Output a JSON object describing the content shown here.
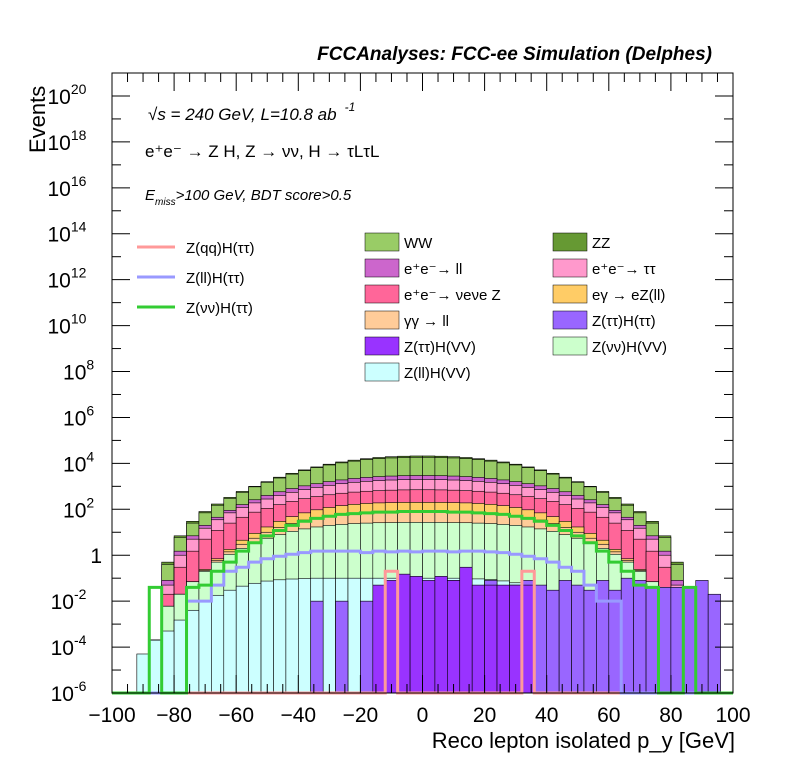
{
  "header": {
    "title": "FCCAnalyses: FCC-ee Simulation (Delphes)"
  },
  "annotations": {
    "energy_prefix": "√s = 240 GeV, L=10.8 ab",
    "energy_sup": "-1",
    "process": "e⁺e⁻ → Z H, Z → νν, H → τLτL",
    "cut_prefix": "E",
    "cut_sub": "miss",
    "cut_suffix": ">100 GeV, BDT score>0.5"
  },
  "chart_data": {
    "type": "histogram",
    "title": "FCCAnalyses: FCC-ee Simulation (Delphes)",
    "xlabel": "Reco lepton isolated p_y [GeV]",
    "ylabel": "Events",
    "xlim": [
      -100,
      100
    ],
    "ylim": [
      1e-06,
      1e+21
    ],
    "log_y": true,
    "x_ticks": [
      -100,
      -80,
      -60,
      -40,
      -20,
      0,
      20,
      40,
      60,
      80,
      100
    ],
    "y_ticks": [
      {
        "value": 1e-06,
        "base": "10",
        "exp": "-6"
      },
      {
        "value": 0.0001,
        "base": "10",
        "exp": "-4"
      },
      {
        "value": 0.01,
        "base": "10",
        "exp": "-2"
      },
      {
        "value": 1,
        "base": "1",
        "exp": ""
      },
      {
        "value": 100.0,
        "base": "10",
        "exp": "2"
      },
      {
        "value": 10000.0,
        "base": "10",
        "exp": "4"
      },
      {
        "value": 1000000.0,
        "base": "10",
        "exp": "6"
      },
      {
        "value": 100000000.0,
        "base": "10",
        "exp": "8"
      },
      {
        "value": 10000000000.0,
        "base": "10",
        "exp": "10"
      },
      {
        "value": 1000000000000.0,
        "base": "10",
        "exp": "12"
      },
      {
        "value": 100000000000000.0,
        "base": "10",
        "exp": "14"
      },
      {
        "value": 1e+16,
        "base": "10",
        "exp": "16"
      },
      {
        "value": 1e+18,
        "base": "10",
        "exp": "18"
      },
      {
        "value": 1e+20,
        "base": "10",
        "exp": "20"
      }
    ],
    "bin_width": 4,
    "bin_edges_start": -100,
    "stacked_cumulative_series": [
      {
        "name": "Z(ll)H(VV)",
        "color": "#ccffff",
        "values": [
          1e-06,
          1e-06,
          5e-05,
          0.0002,
          0.0005,
          0.0015,
          0.004,
          0.009,
          0.018,
          0.03,
          0.045,
          0.06,
          0.075,
          0.085,
          0.092,
          0.097,
          0.1,
          0.1,
          0.1,
          0.1,
          0.1,
          0.1,
          0.1,
          0.1,
          0.1,
          0.1,
          0.1,
          0.1,
          0.098,
          0.093,
          0.086,
          0.076,
          0.063,
          0.048,
          0.033,
          0.02,
          0.01,
          0.004,
          0.0015,
          0.0004,
          1e-06,
          1e-06,
          1e-06,
          1e-06,
          1e-06,
          1e-06,
          1e-06,
          1e-06,
          1e-06,
          1e-06
        ]
      },
      {
        "name": "Z(νν)H(VV)",
        "color": "#ccffcc",
        "values": [
          1e-06,
          1e-06,
          1e-06,
          0.0002,
          0.006,
          0.02,
          0.07,
          0.2,
          0.5,
          1.1,
          2,
          3.4,
          5.5,
          8,
          11,
          14,
          17,
          20,
          22,
          24,
          25,
          26,
          26.5,
          27,
          27,
          27,
          27,
          26.5,
          26,
          25,
          24,
          22,
          20,
          17,
          14,
          11,
          8,
          5.5,
          3.4,
          2,
          1.1,
          0.5,
          0.2,
          0.07,
          0.02,
          0.006,
          0.0002,
          1e-06,
          1e-06,
          1e-06
        ]
      },
      {
        "name": "γγ → ll",
        "color": "#ffcc99",
        "values": [
          1e-06,
          1e-06,
          1e-06,
          0.0002,
          0.006,
          0.02,
          0.07,
          0.22,
          0.6,
          1.4,
          3,
          5.5,
          10,
          16,
          24,
          34,
          44,
          54,
          62,
          68,
          72,
          75,
          77,
          78,
          78,
          78,
          78,
          77,
          75,
          72,
          68,
          62,
          54,
          44,
          34,
          24,
          16,
          10,
          5.5,
          3,
          1.4,
          0.6,
          0.22,
          0.07,
          0.02,
          0.006,
          0.0002,
          1e-06,
          1e-06,
          1e-06
        ]
      },
      {
        "name": "eγ → eZ(ll)",
        "color": "#ffcc66",
        "values": [
          1e-06,
          1e-06,
          1e-06,
          0.0002,
          0.006,
          0.02,
          0.07,
          0.24,
          0.7,
          1.8,
          4.5,
          9,
          17,
          30,
          48,
          70,
          95,
          120,
          145,
          165,
          180,
          190,
          196,
          200,
          200,
          200,
          200,
          196,
          190,
          180,
          165,
          145,
          120,
          95,
          70,
          48,
          30,
          17,
          9,
          4.5,
          1.8,
          0.7,
          0.24,
          0.07,
          0.02,
          0.006,
          0.0002,
          1e-06,
          1e-06,
          1e-06
        ]
      },
      {
        "name": "e⁺e⁻ → νeνe Z",
        "color": "#ff6699",
        "values": [
          1e-06,
          1e-06,
          1e-06,
          0.0002,
          0.02,
          0.3,
          1.5,
          5,
          12,
          25,
          45,
          75,
          110,
          160,
          220,
          290,
          360,
          430,
          500,
          560,
          610,
          650,
          680,
          700,
          710,
          710,
          700,
          680,
          650,
          610,
          560,
          500,
          430,
          360,
          290,
          220,
          160,
          110,
          75,
          45,
          25,
          12,
          5,
          1.5,
          0.3,
          0.02,
          0.0002,
          1e-06,
          1e-06,
          1e-06
        ]
      },
      {
        "name": "e⁺e⁻ → ττ",
        "color": "#ff99cc",
        "values": [
          1e-06,
          1e-06,
          1e-06,
          0.0002,
          0.05,
          1,
          5,
          15,
          35,
          70,
          120,
          190,
          280,
          400,
          550,
          720,
          900,
          1100,
          1300,
          1500,
          1650,
          1780,
          1880,
          1950,
          1980,
          1980,
          1950,
          1880,
          1780,
          1650,
          1500,
          1300,
          1100,
          900,
          720,
          550,
          400,
          280,
          190,
          120,
          70,
          35,
          15,
          5,
          1,
          0.05,
          0.0002,
          1e-06,
          1e-06,
          1e-06
        ]
      },
      {
        "name": "e⁺e⁻ → ll",
        "color": "#cc66cc",
        "values": [
          1e-06,
          1e-06,
          1e-06,
          0.0002,
          0.08,
          1.5,
          7,
          20,
          45,
          90,
          160,
          260,
          400,
          580,
          800,
          1050,
          1300,
          1600,
          1900,
          2200,
          2450,
          2650,
          2800,
          2900,
          2950,
          2950,
          2900,
          2800,
          2650,
          2450,
          2200,
          1900,
          1600,
          1300,
          1050,
          800,
          580,
          400,
          260,
          160,
          90,
          45,
          20,
          7,
          1.5,
          0.08,
          0.0002,
          1e-06,
          1e-06,
          1e-06
        ]
      },
      {
        "name": "WW",
        "color": "#99cc66",
        "values": [
          1e-06,
          1e-06,
          1e-06,
          0.0002,
          0.4,
          6,
          25,
          70,
          150,
          300,
          550,
          950,
          1500,
          2300,
          3400,
          4800,
          6500,
          8500,
          10500,
          12500,
          14500,
          16000,
          17200,
          18000,
          18400,
          18400,
          18000,
          17200,
          16000,
          14500,
          12500,
          10500,
          8500,
          6500,
          4800,
          3400,
          2300,
          1500,
          950,
          550,
          300,
          150,
          70,
          25,
          6,
          0.4,
          0.0002,
          1e-06,
          1e-06,
          1e-06
        ]
      },
      {
        "name": "ZZ",
        "color": "#669933",
        "values": [
          1e-06,
          1e-06,
          1e-06,
          0.0002,
          0.5,
          7,
          30,
          80,
          170,
          330,
          600,
          1000,
          1600,
          2500,
          3700,
          5200,
          7000,
          9200,
          11500,
          13800,
          16000,
          18000,
          19500,
          20500,
          21000,
          21000,
          20500,
          19500,
          18000,
          16000,
          13800,
          11500,
          9200,
          7000,
          5200,
          3700,
          2500,
          1600,
          1000,
          600,
          330,
          170,
          80,
          30,
          7,
          0.5,
          0.0002,
          1e-06,
          1e-06,
          1e-06
        ]
      }
    ],
    "rare_series": [
      {
        "name": "Z(ττ)H(VV)",
        "color": "#9933ff",
        "values": [
          1e-06,
          1e-06,
          1e-06,
          1e-06,
          1e-06,
          1e-06,
          1e-06,
          1e-06,
          1e-06,
          1e-06,
          1e-06,
          1e-06,
          1e-06,
          1e-06,
          1e-06,
          1e-06,
          1e-06,
          1e-06,
          1e-06,
          1e-06,
          1e-06,
          0.05,
          0.08,
          0.15,
          0.12,
          0.08,
          0.12,
          0.08,
          0.3,
          0.05,
          0.05,
          0.05,
          0.05,
          0.05,
          1e-06,
          1e-06,
          1e-06,
          1e-06,
          1e-06,
          1e-06,
          1e-06,
          1e-06,
          1e-06,
          1e-06,
          1e-06,
          1e-06,
          1e-06,
          1e-06,
          1e-06,
          1e-06
        ]
      },
      {
        "name": "Z(ττ)H(ττ)",
        "color": "#9966ff",
        "values": [
          1e-06,
          1e-06,
          1e-06,
          1e-06,
          1e-06,
          1e-06,
          1e-06,
          1e-06,
          1e-06,
          1e-06,
          1e-06,
          1e-06,
          1e-06,
          1e-06,
          1e-06,
          1e-06,
          1e-06,
          1e-06,
          1e-06,
          1e-06,
          1e-06,
          1e-06,
          1e-06,
          1e-06,
          1e-06,
          1e-06,
          1e-06,
          1e-06,
          1e-06,
          1e-06,
          1e-06,
          1e-06,
          1e-06,
          1e-06,
          1e-06,
          1e-06,
          1e-06,
          1e-06,
          1e-06,
          1e-06,
          1e-06,
          1e-06,
          1e-06,
          1e-06,
          1e-06,
          1e-06,
          1e-06,
          1e-06,
          1e-06,
          1e-06
        ]
      }
    ],
    "purple_fill_values": [
      1e-06,
      1e-06,
      1e-06,
      1e-06,
      1e-06,
      1e-06,
      1e-06,
      1e-06,
      1e-06,
      1e-06,
      1e-06,
      1e-06,
      1e-06,
      1e-06,
      1e-06,
      1e-06,
      0.01,
      1e-06,
      0.01,
      1e-06,
      0.01,
      1e-06,
      1e-06,
      0.01,
      1e-06,
      1e-06,
      0.01,
      0.08,
      0.08,
      0.02,
      0.08,
      0.02,
      0.05,
      0.08,
      0.05,
      0.03,
      0.08,
      0.05,
      0.03,
      0.08,
      0.03,
      0.1,
      0.08,
      0.04,
      0.04,
      0.04,
      0.04,
      0.08,
      0.02,
      1e-06
    ],
    "line_series": [
      {
        "name": "Z(qq)H(ττ)",
        "color": "#ff9999",
        "values": [
          1e-06,
          1e-06,
          1e-06,
          1e-06,
          1e-06,
          1e-06,
          1e-06,
          1e-06,
          1e-06,
          1e-06,
          1e-06,
          1e-06,
          1e-06,
          1e-06,
          1e-06,
          1e-06,
          1e-06,
          1e-06,
          1e-06,
          1e-06,
          1e-06,
          1e-06,
          0.2,
          1e-06,
          1e-06,
          1e-06,
          1e-06,
          1e-06,
          1e-06,
          1e-06,
          1e-06,
          1e-06,
          1e-06,
          0.2,
          1e-06,
          1e-06,
          1e-06,
          1e-06,
          1e-06,
          1e-06,
          1e-06,
          1e-06,
          1e-06,
          1e-06,
          1e-06,
          1e-06,
          1e-06,
          1e-06,
          1e-06,
          1e-06
        ]
      },
      {
        "name": "Z(ll)H(ττ)",
        "color": "#9999ff",
        "values": [
          1e-06,
          1e-06,
          1e-06,
          1e-06,
          1e-06,
          1e-06,
          0.01,
          0.01,
          0.05,
          0.2,
          0.3,
          0.5,
          0.7,
          0.9,
          1.1,
          1.3,
          1.5,
          1.5,
          1.5,
          1.5,
          1.3,
          1.5,
          1.4,
          1.5,
          1.4,
          1.5,
          1.5,
          1.4,
          1.5,
          1.5,
          1.4,
          1.3,
          1.1,
          0.9,
          0.7,
          0.5,
          0.3,
          0.2,
          0.05,
          0.01,
          0.01,
          1e-06,
          1e-06,
          1e-06,
          1e-06,
          1e-06,
          1e-06,
          1e-06,
          1e-06,
          1e-06
        ]
      },
      {
        "name": "Z(νν)H(ττ)",
        "color": "#33cc33",
        "values": [
          1e-06,
          1e-06,
          1e-06,
          0.04,
          1e-06,
          1e-06,
          0.04,
          0.05,
          0.2,
          0.5,
          1.5,
          3.5,
          7,
          12,
          20,
          30,
          40,
          50,
          60,
          65,
          70,
          75,
          75,
          80,
          80,
          80,
          80,
          75,
          75,
          70,
          65,
          60,
          50,
          40,
          30,
          20,
          12,
          7,
          3.5,
          1.5,
          0.5,
          0.2,
          0.05,
          0.04,
          1e-06,
          1e-06,
          0.04,
          1e-06,
          1e-06,
          1e-06
        ]
      }
    ],
    "legend": {
      "left": [
        {
          "label": "Z(qq)H(ττ)",
          "color": "#ff9999",
          "style": "line"
        },
        {
          "label": "Z(ll)H(ττ)",
          "color": "#9999ff",
          "style": "line"
        },
        {
          "label": "Z(νν)H(ττ)",
          "color": "#33cc33",
          "style": "line"
        }
      ],
      "mid": [
        {
          "label": "WW",
          "color": "#99cc66"
        },
        {
          "label": "e⁺e⁻→ ll",
          "color": "#cc66cc"
        },
        {
          "label": "e⁺e⁻→ νeνe Z",
          "color": "#ff6699"
        },
        {
          "label": "γγ → ll",
          "color": "#ffcc99"
        },
        {
          "label": "Z(ττ)H(VV)",
          "color": "#9933ff"
        },
        {
          "label": "Z(ll)H(VV)",
          "color": "#ccffff"
        }
      ],
      "right": [
        {
          "label": "ZZ",
          "color": "#669933"
        },
        {
          "label": "e⁺e⁻→ ττ",
          "color": "#ff99cc"
        },
        {
          "label": "eγ → eZ(ll)",
          "color": "#ffcc66"
        },
        {
          "label": "Z(ττ)H(ττ)",
          "color": "#9966ff"
        },
        {
          "label": "Z(νν)H(VV)",
          "color": "#ccffcc"
        }
      ]
    }
  }
}
